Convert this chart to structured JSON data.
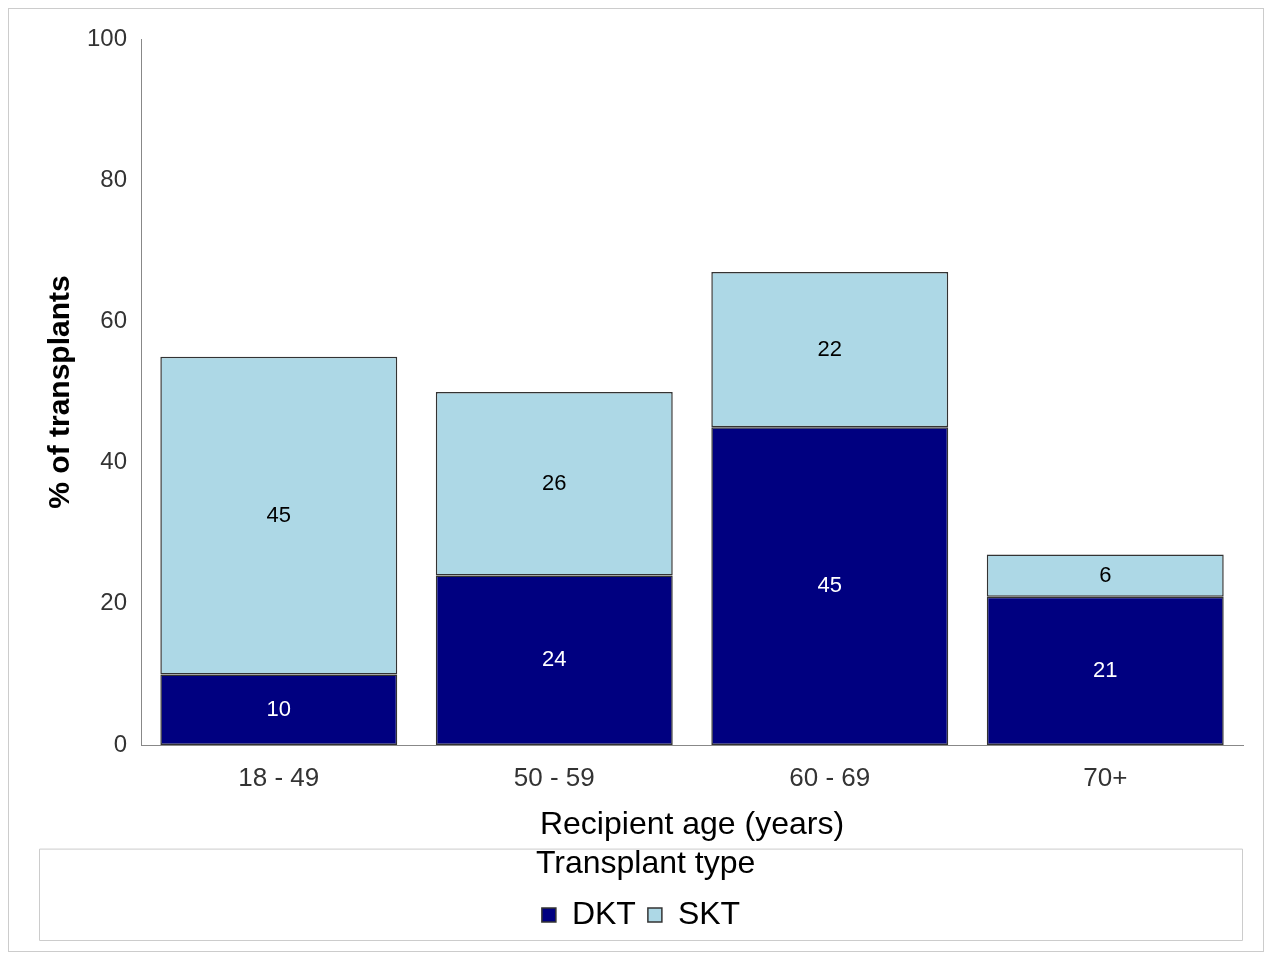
{
  "chart_data": {
    "type": "bar",
    "xlabel": "Recipient age (years)",
    "ylabel": "% of transplants",
    "legend_title": "Transplant type",
    "categories": [
      "18 - 49",
      "50 - 59",
      "60 - 69",
      "70+"
    ],
    "series": [
      {
        "name": "DKT",
        "color": "#000080",
        "values": [
          10,
          24,
          45,
          21
        ]
      },
      {
        "name": "SKT",
        "color": "#add8e6",
        "values": [
          45,
          26,
          22,
          6
        ]
      }
    ],
    "stacked": true,
    "ylim": [
      0,
      100
    ],
    "yticks": [
      0,
      20,
      40,
      60,
      80,
      100
    ],
    "grid": false,
    "legend": "bottom",
    "data_labels": true
  }
}
